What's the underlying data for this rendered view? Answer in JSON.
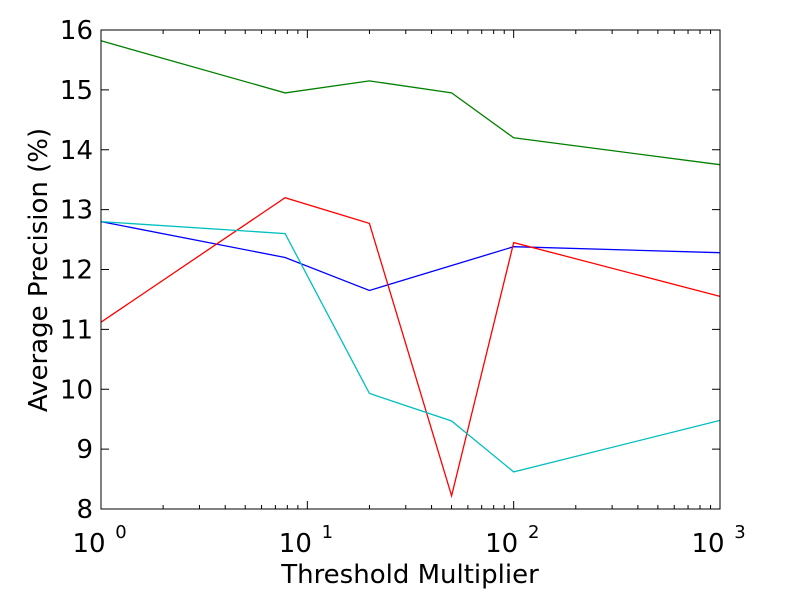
{
  "chart_data": {
    "type": "line",
    "title": "",
    "xlabel": "Threshold Multiplier",
    "ylabel": "Average Precision (%)",
    "xscale": "log",
    "xlim": [
      1,
      1000
    ],
    "ylim": [
      8,
      16
    ],
    "grid": false,
    "legend": "none",
    "x_ticks": [
      {
        "base": "10",
        "exp": "0",
        "value": 1
      },
      {
        "base": "10",
        "exp": "1",
        "value": 10
      },
      {
        "base": "10",
        "exp": "2",
        "value": 100
      },
      {
        "base": "10",
        "exp": "3",
        "value": 1000
      }
    ],
    "y_ticks": [
      "8",
      "9",
      "10",
      "11",
      "12",
      "13",
      "14",
      "15",
      "16"
    ],
    "series": [
      {
        "color": "#008000",
        "points": [
          [
            1,
            15.82
          ],
          [
            7.8,
            14.95
          ],
          [
            20,
            15.15
          ],
          [
            50,
            14.95
          ],
          [
            100,
            14.2
          ],
          [
            1000,
            13.75
          ]
        ]
      },
      {
        "color": "#0000ff",
        "points": [
          [
            1,
            12.8
          ],
          [
            7.8,
            12.2
          ],
          [
            20,
            11.65
          ],
          [
            100,
            12.38
          ],
          [
            1000,
            12.28
          ]
        ]
      },
      {
        "color": "#ff0000",
        "points": [
          [
            1,
            11.12
          ],
          [
            7.8,
            13.2
          ],
          [
            20,
            12.77
          ],
          [
            50,
            8.22
          ],
          [
            100,
            12.45
          ],
          [
            1000,
            11.55
          ]
        ]
      },
      {
        "color": "#00bfbf",
        "points": [
          [
            1,
            12.8
          ],
          [
            7.8,
            12.6
          ],
          [
            20,
            9.93
          ],
          [
            50,
            9.47
          ],
          [
            100,
            8.62
          ],
          [
            1000,
            9.48
          ]
        ]
      }
    ]
  }
}
